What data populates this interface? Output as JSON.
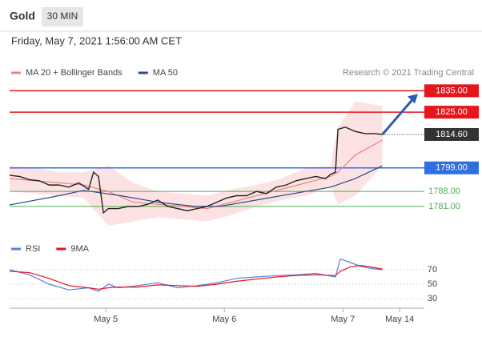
{
  "header": {
    "symbol": "Gold",
    "interval": "30 MIN",
    "date": "Friday, May 7, 2021 1:56:00 AM CET",
    "credit": "Research © 2021 Trading Central"
  },
  "chart_data": [
    {
      "type": "line",
      "xlim": [
        0,
        168
      ],
      "ylim": [
        1769,
        1840
      ],
      "levels": [
        {
          "value": 1835,
          "label": "1835.00",
          "color": "#e8141b",
          "style": "box"
        },
        {
          "value": 1825,
          "label": "1825.00",
          "color": "#e8141b",
          "style": "box"
        },
        {
          "value": 1814.6,
          "label": "1814.60",
          "color": "#333333",
          "style": "current"
        },
        {
          "value": 1799,
          "label": "1799.00",
          "color": "#2f6fe0",
          "style": "box"
        },
        {
          "value": 1788,
          "label": "1788.00",
          "color": "#4caf50",
          "style": "text"
        },
        {
          "value": 1781,
          "label": "1781.00",
          "color": "#4caf50",
          "style": "text"
        }
      ],
      "series": [
        {
          "name": "MA 20 + Bollinger Bands",
          "color": "#f08080",
          "x": [
            0,
            10,
            20,
            30,
            40,
            50,
            60,
            70,
            80,
            90,
            100,
            110,
            120,
            130,
            133,
            140,
            151
          ],
          "values": [
            1794,
            1793,
            1792,
            1791,
            1788,
            1783,
            1782,
            1781,
            1780,
            1783,
            1786,
            1789,
            1792,
            1795,
            1797,
            1805,
            1812
          ],
          "upper": [
            1800,
            1799,
            1797,
            1797,
            1800,
            1792,
            1788,
            1787,
            1786,
            1789,
            1791,
            1794,
            1799,
            1800,
            1818,
            1830,
            1828
          ],
          "lower": [
            1788,
            1787,
            1786,
            1785,
            1772,
            1774,
            1776,
            1775,
            1774,
            1777,
            1781,
            1784,
            1786,
            1790,
            1782,
            1786,
            1800
          ]
        },
        {
          "name": "MA 50",
          "color": "#2a4b8d",
          "x": [
            0,
            20,
            30,
            45,
            60,
            75,
            85,
            100,
            115,
            130,
            140,
            151
          ],
          "values": [
            1781.7,
            1786,
            1788.5,
            1786,
            1783,
            1781,
            1781,
            1784,
            1787,
            1790,
            1794,
            1800
          ]
        },
        {
          "color": "#222222",
          "x": [
            0,
            4,
            8,
            12,
            16,
            20,
            24,
            28,
            32,
            34,
            36,
            38,
            40,
            44,
            48,
            52,
            56,
            60,
            64,
            68,
            72,
            76,
            80,
            84,
            88,
            92,
            96,
            100,
            104,
            108,
            112,
            116,
            120,
            124,
            128,
            130,
            132,
            133,
            136,
            140,
            144,
            148,
            151
          ],
          "values": [
            1795.5,
            1795,
            1793.5,
            1793,
            1791,
            1791,
            1790,
            1792,
            1789,
            1797,
            1795,
            1778,
            1780,
            1780,
            1781,
            1781,
            1782,
            1784,
            1781,
            1780,
            1779,
            1780,
            1781,
            1783,
            1785,
            1786,
            1786,
            1788,
            1787,
            1790,
            1791,
            1793,
            1794,
            1795,
            1794,
            1796,
            1797,
            1817,
            1818,
            1816,
            1815,
            1815,
            1814.6
          ]
        }
      ]
    },
    {
      "type": "line",
      "xlim": [
        0,
        168
      ],
      "ylim": [
        20,
        100
      ],
      "yticks": [
        30,
        50,
        70
      ],
      "xticks": [
        {
          "value": 39,
          "label": "May 5"
        },
        {
          "value": 87,
          "label": "May 6"
        },
        {
          "value": 135,
          "label": "May 7"
        },
        {
          "value": 158,
          "label": "May 14"
        }
      ],
      "series": [
        {
          "name": "RSI",
          "color": "#5b7fe0",
          "x": [
            0,
            8,
            16,
            24,
            32,
            36,
            40,
            44,
            52,
            60,
            68,
            76,
            84,
            92,
            100,
            108,
            116,
            124,
            132,
            134,
            138,
            142,
            146,
            151
          ],
          "values": [
            70,
            63,
            50,
            42,
            45,
            40,
            50,
            45,
            48,
            52,
            45,
            48,
            52,
            58,
            60,
            62,
            63,
            65,
            60,
            85,
            80,
            75,
            72,
            70
          ]
        },
        {
          "name": "9MA",
          "color": "#e8141b",
          "x": [
            0,
            8,
            16,
            24,
            32,
            36,
            40,
            44,
            52,
            60,
            68,
            76,
            84,
            92,
            100,
            108,
            116,
            124,
            132,
            134,
            138,
            142,
            146,
            151
          ],
          "values": [
            68,
            66,
            58,
            48,
            45,
            43,
            45,
            46,
            46,
            49,
            48,
            47,
            50,
            54,
            57,
            60,
            62,
            63,
            62,
            68,
            74,
            76,
            74,
            71
          ]
        }
      ]
    }
  ]
}
